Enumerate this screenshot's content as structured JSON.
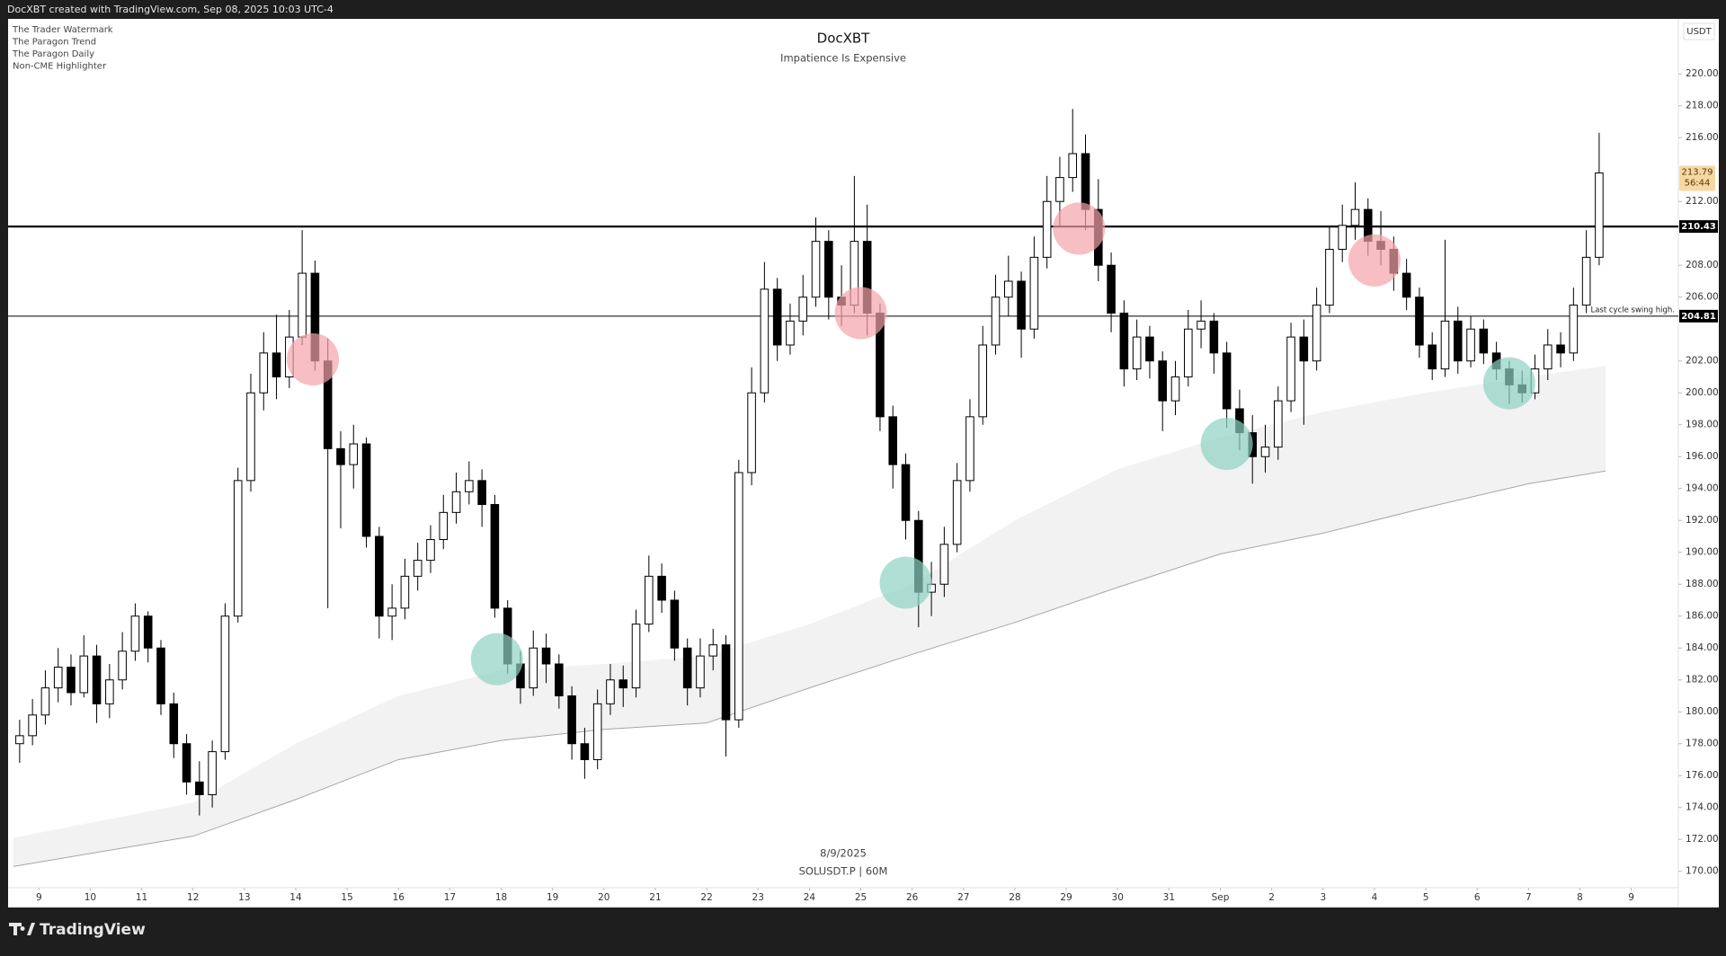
{
  "page": {
    "header": "DocXBT created with TradingView.com, Sep 08, 2025 10:03 UTC-4",
    "indicators": [
      "The Trader Watermark",
      "The Paragon Trend",
      "The Paragon Daily",
      "Non-CME Highlighter"
    ],
    "brand": "TradingView"
  },
  "chart_data": {
    "type": "candlestick",
    "title": "DocXBT",
    "subtitle": "Impatience Is Expensive",
    "date_label": "8/9/2025",
    "symbol": "SOLUSDT.P | 60M",
    "y_unit": "USDT",
    "up_color": "#ffffff",
    "down_color": "#000000",
    "wick_color": "#000000",
    "xlim": [
      "2025-08-08T09:36",
      "2025-09-09T22:00"
    ],
    "ylim": [
      168.97,
      223.45
    ],
    "grid": false,
    "xticks": [
      {
        "value": "2025-08-09T00:00",
        "label": "9"
      },
      {
        "value": "2025-08-10T00:00",
        "label": "10"
      },
      {
        "value": "2025-08-11T00:00",
        "label": "11"
      },
      {
        "value": "2025-08-12T00:00",
        "label": "12"
      },
      {
        "value": "2025-08-13T00:00",
        "label": "13"
      },
      {
        "value": "2025-08-14T00:00",
        "label": "14"
      },
      {
        "value": "2025-08-15T00:00",
        "label": "15"
      },
      {
        "value": "2025-08-16T00:00",
        "label": "16"
      },
      {
        "value": "2025-08-17T00:00",
        "label": "17"
      },
      {
        "value": "2025-08-18T00:00",
        "label": "18"
      },
      {
        "value": "2025-08-19T00:00",
        "label": "19"
      },
      {
        "value": "2025-08-20T00:00",
        "label": "20"
      },
      {
        "value": "2025-08-21T00:00",
        "label": "21"
      },
      {
        "value": "2025-08-22T00:00",
        "label": "22"
      },
      {
        "value": "2025-08-23T00:00",
        "label": "23"
      },
      {
        "value": "2025-08-24T00:00",
        "label": "24"
      },
      {
        "value": "2025-08-25T00:00",
        "label": "25"
      },
      {
        "value": "2025-08-26T00:00",
        "label": "26"
      },
      {
        "value": "2025-08-27T00:00",
        "label": "27"
      },
      {
        "value": "2025-08-28T00:00",
        "label": "28"
      },
      {
        "value": "2025-08-29T00:00",
        "label": "29"
      },
      {
        "value": "2025-08-30T00:00",
        "label": "30"
      },
      {
        "value": "2025-08-31T00:00",
        "label": "31"
      },
      {
        "value": "2025-09-01T00:00",
        "label": "Sep"
      },
      {
        "value": "2025-09-02T00:00",
        "label": "2"
      },
      {
        "value": "2025-09-03T00:00",
        "label": "3"
      },
      {
        "value": "2025-09-04T00:00",
        "label": "4"
      },
      {
        "value": "2025-09-05T00:00",
        "label": "5"
      },
      {
        "value": "2025-09-06T00:00",
        "label": "6"
      },
      {
        "value": "2025-09-07T00:00",
        "label": "7"
      },
      {
        "value": "2025-09-08T00:00",
        "label": "8"
      },
      {
        "value": "2025-09-09T00:00",
        "label": "9"
      }
    ],
    "yticks": [
      {
        "value": 170,
        "label": "170.00"
      },
      {
        "value": 172,
        "label": "172.00"
      },
      {
        "value": 174,
        "label": "174.00"
      },
      {
        "value": 176,
        "label": "176.00"
      },
      {
        "value": 178,
        "label": "178.00"
      },
      {
        "value": 180,
        "label": "180.00"
      },
      {
        "value": 182,
        "label": "182.00"
      },
      {
        "value": 184,
        "label": "184.00"
      },
      {
        "value": 186,
        "label": "186.00"
      },
      {
        "value": 188,
        "label": "188.00"
      },
      {
        "value": 190,
        "label": "190.00"
      },
      {
        "value": 192,
        "label": "192.00"
      },
      {
        "value": 194,
        "label": "194.00"
      },
      {
        "value": 196,
        "label": "196.00"
      },
      {
        "value": 198,
        "label": "198.00"
      },
      {
        "value": 200,
        "label": "200.00"
      },
      {
        "value": 202,
        "label": "202.00"
      },
      {
        "value": 206,
        "label": "206.00"
      },
      {
        "value": 208,
        "label": "208.00"
      },
      {
        "value": 212,
        "label": "212.00"
      },
      {
        "value": 216,
        "label": "216.00"
      },
      {
        "value": 218,
        "label": "218.00"
      },
      {
        "value": 220,
        "label": "220.00"
      }
    ],
    "x": [
      "2025-08-08T12:00",
      "2025-08-08T18:00",
      "2025-08-09T00:00",
      "2025-08-09T06:00",
      "2025-08-09T12:00",
      "2025-08-09T18:00",
      "2025-08-10T00:00",
      "2025-08-10T06:00",
      "2025-08-10T12:00",
      "2025-08-10T18:00",
      "2025-08-11T00:00",
      "2025-08-11T06:00",
      "2025-08-11T12:00",
      "2025-08-11T18:00",
      "2025-08-12T00:00",
      "2025-08-12T06:00",
      "2025-08-12T12:00",
      "2025-08-12T18:00",
      "2025-08-13T00:00",
      "2025-08-13T06:00",
      "2025-08-13T12:00",
      "2025-08-13T18:00",
      "2025-08-14T00:00",
      "2025-08-14T06:00",
      "2025-08-14T12:00",
      "2025-08-14T18:00",
      "2025-08-15T00:00",
      "2025-08-15T06:00",
      "2025-08-15T12:00",
      "2025-08-15T18:00",
      "2025-08-16T00:00",
      "2025-08-16T06:00",
      "2025-08-16T12:00",
      "2025-08-16T18:00",
      "2025-08-17T00:00",
      "2025-08-17T06:00",
      "2025-08-17T12:00",
      "2025-08-17T18:00",
      "2025-08-18T00:00",
      "2025-08-18T06:00",
      "2025-08-18T12:00",
      "2025-08-18T18:00",
      "2025-08-19T00:00",
      "2025-08-19T06:00",
      "2025-08-19T12:00",
      "2025-08-19T18:00",
      "2025-08-20T00:00",
      "2025-08-20T06:00",
      "2025-08-20T12:00",
      "2025-08-20T18:00",
      "2025-08-21T00:00",
      "2025-08-21T06:00",
      "2025-08-21T12:00",
      "2025-08-21T18:00",
      "2025-08-22T00:00",
      "2025-08-22T06:00",
      "2025-08-22T12:00",
      "2025-08-22T18:00",
      "2025-08-23T00:00",
      "2025-08-23T06:00",
      "2025-08-23T12:00",
      "2025-08-23T18:00",
      "2025-08-24T00:00",
      "2025-08-24T06:00",
      "2025-08-24T12:00",
      "2025-08-24T18:00",
      "2025-08-25T00:00",
      "2025-08-25T06:00",
      "2025-08-25T12:00",
      "2025-08-25T18:00",
      "2025-08-26T00:00",
      "2025-08-26T06:00",
      "2025-08-26T12:00",
      "2025-08-26T18:00",
      "2025-08-27T00:00",
      "2025-08-27T06:00",
      "2025-08-27T12:00",
      "2025-08-27T18:00",
      "2025-08-28T00:00",
      "2025-08-28T06:00",
      "2025-08-28T12:00",
      "2025-08-28T18:00",
      "2025-08-29T00:00",
      "2025-08-29T06:00",
      "2025-08-29T12:00",
      "2025-08-29T18:00",
      "2025-08-30T00:00",
      "2025-08-30T06:00",
      "2025-08-30T12:00",
      "2025-08-30T18:00",
      "2025-08-31T00:00",
      "2025-08-31T06:00",
      "2025-08-31T12:00",
      "2025-08-31T18:00",
      "2025-09-01T00:00",
      "2025-09-01T06:00",
      "2025-09-01T12:00",
      "2025-09-01T18:00",
      "2025-09-02T00:00",
      "2025-09-02T06:00",
      "2025-09-02T12:00",
      "2025-09-02T18:00",
      "2025-09-03T00:00",
      "2025-09-03T06:00",
      "2025-09-03T12:00",
      "2025-09-03T18:00",
      "2025-09-04T00:00",
      "2025-09-04T06:00",
      "2025-09-04T12:00",
      "2025-09-04T18:00",
      "2025-09-05T00:00",
      "2025-09-05T06:00",
      "2025-09-05T12:00",
      "2025-09-05T18:00",
      "2025-09-06T00:00",
      "2025-09-06T06:00",
      "2025-09-06T12:00",
      "2025-09-06T18:00",
      "2025-09-07T00:00",
      "2025-09-07T06:00",
      "2025-09-07T12:00",
      "2025-09-07T18:00",
      "2025-09-08T00:00",
      "2025-09-08T06:00"
    ],
    "open": [
      178.0,
      178.5,
      179.8,
      181.5,
      182.8,
      181.2,
      183.5,
      180.5,
      182.0,
      183.8,
      186.0,
      184.0,
      180.5,
      178.0,
      175.6,
      174.8,
      177.5,
      186.0,
      194.5,
      200.0,
      202.5,
      201.0,
      203.5,
      207.5,
      202.0,
      196.5,
      195.5,
      196.8,
      191.0,
      186.0,
      186.5,
      188.5,
      189.5,
      190.8,
      192.5,
      193.8,
      194.5,
      193.0,
      186.5,
      183.0,
      181.5,
      184.0,
      183.0,
      181.0,
      178.0,
      177.0,
      180.5,
      182.0,
      181.5,
      185.5,
      188.5,
      187.0,
      184.0,
      181.5,
      183.5,
      184.2,
      179.5,
      195.0,
      200.0,
      206.5,
      203.0,
      204.5,
      206.0,
      209.5,
      206.0,
      205.5,
      209.5,
      205.0,
      198.5,
      195.5,
      192.0,
      187.5,
      188.0,
      190.5,
      194.5,
      198.5,
      203.0,
      206.0,
      207.0,
      204.0,
      208.5,
      212.0,
      213.5,
      215.0,
      211.5,
      208.0,
      205.0,
      201.5,
      203.5,
      202.0,
      199.5,
      201.0,
      204.0,
      204.5,
      202.5,
      199.0,
      197.5,
      196.0,
      196.6,
      199.5,
      203.5,
      202.0,
      205.5,
      209.0,
      210.5,
      211.5,
      209.5,
      209.0,
      207.5,
      206.0,
      203.0,
      201.5,
      204.5,
      202.0,
      204.0,
      202.5,
      201.5,
      200.5,
      200.0,
      201.5,
      203.0,
      202.5,
      205.5,
      208.5
    ],
    "high": [
      179.5,
      180.8,
      182.6,
      184.0,
      183.6,
      184.8,
      184.2,
      183.0,
      185.0,
      186.8,
      186.3,
      184.5,
      181.2,
      178.6,
      176.9,
      178.2,
      186.8,
      195.3,
      201.2,
      203.8,
      204.9,
      205.2,
      210.2,
      208.3,
      203.4,
      197.6,
      198.0,
      197.2,
      191.6,
      188.0,
      189.6,
      190.6,
      191.7,
      193.6,
      195.0,
      195.7,
      195.2,
      193.6,
      187.0,
      183.8,
      185.1,
      184.9,
      183.6,
      181.6,
      179.0,
      181.4,
      183.0,
      182.9,
      186.4,
      189.8,
      189.3,
      187.6,
      184.6,
      184.6,
      185.2,
      184.8,
      195.8,
      201.6,
      208.2,
      207.2,
      205.6,
      207.4,
      211.0,
      210.2,
      208.0,
      213.6,
      211.8,
      205.6,
      199.2,
      196.2,
      192.6,
      189.4,
      191.6,
      195.6,
      199.6,
      204.2,
      207.4,
      208.6,
      207.6,
      209.8,
      213.6,
      214.8,
      217.8,
      216.2,
      213.4,
      208.8,
      205.8,
      204.6,
      204.2,
      202.6,
      202.0,
      205.2,
      205.8,
      205.0,
      203.2,
      200.2,
      198.6,
      198.0,
      200.4,
      204.4,
      204.6,
      206.6,
      210.4,
      211.8,
      213.2,
      212.2,
      211.4,
      209.8,
      208.4,
      206.6,
      203.8,
      209.6,
      205.4,
      204.8,
      204.6,
      203.2,
      202.0,
      201.4,
      202.4,
      204.0,
      203.8,
      206.6,
      210.2,
      216.3
    ],
    "low": [
      176.8,
      177.9,
      179.2,
      180.6,
      180.4,
      180.9,
      179.3,
      179.6,
      181.4,
      183.2,
      183.1,
      179.8,
      177.1,
      174.8,
      173.5,
      174.0,
      177.0,
      185.6,
      193.8,
      198.9,
      199.6,
      200.3,
      203.0,
      201.4,
      186.5,
      191.5,
      194.0,
      190.3,
      184.6,
      184.5,
      185.8,
      187.6,
      188.7,
      190.2,
      191.8,
      193.0,
      191.6,
      185.9,
      182.4,
      180.5,
      181.0,
      181.8,
      180.2,
      177.0,
      175.8,
      176.4,
      179.8,
      180.3,
      180.9,
      185.0,
      186.2,
      183.2,
      180.4,
      180.9,
      182.6,
      177.2,
      179.0,
      194.2,
      199.4,
      202.0,
      202.4,
      203.6,
      205.4,
      204.6,
      204.2,
      205.0,
      203.6,
      197.6,
      194.0,
      190.8,
      185.3,
      186.0,
      187.2,
      190.0,
      193.8,
      198.0,
      202.4,
      204.8,
      202.2,
      203.4,
      207.8,
      210.4,
      212.6,
      210.2,
      207.0,
      203.8,
      200.4,
      200.8,
      200.9,
      197.6,
      198.6,
      200.4,
      202.8,
      201.2,
      197.8,
      196.4,
      194.3,
      195.0,
      195.8,
      198.8,
      198.0,
      201.4,
      205.0,
      208.2,
      209.6,
      208.6,
      208.0,
      206.4,
      205.2,
      202.2,
      200.8,
      201.0,
      201.2,
      201.6,
      201.8,
      200.8,
      199.3,
      199.4,
      199.6,
      200.8,
      201.6,
      202.0,
      205.0,
      208.0
    ],
    "close": [
      178.5,
      179.8,
      181.5,
      182.8,
      181.2,
      183.5,
      180.5,
      182.0,
      183.8,
      186.0,
      184.0,
      180.5,
      178.0,
      175.6,
      174.8,
      177.5,
      186.0,
      194.5,
      200.0,
      202.5,
      201.0,
      203.5,
      207.5,
      202.0,
      196.5,
      195.5,
      196.8,
      191.0,
      186.0,
      186.5,
      188.5,
      189.5,
      190.8,
      192.5,
      193.8,
      194.5,
      193.0,
      186.5,
      183.0,
      181.5,
      184.0,
      183.0,
      181.0,
      178.0,
      177.0,
      180.5,
      182.0,
      181.5,
      185.5,
      188.5,
      187.0,
      184.0,
      181.5,
      183.5,
      184.2,
      179.5,
      195.0,
      200.0,
      206.5,
      203.0,
      204.5,
      206.0,
      209.5,
      206.0,
      205.5,
      209.5,
      205.0,
      198.5,
      195.5,
      192.0,
      187.5,
      188.0,
      190.5,
      194.5,
      198.5,
      203.0,
      206.0,
      207.0,
      204.0,
      208.5,
      212.0,
      213.5,
      215.0,
      211.5,
      208.0,
      205.0,
      201.5,
      203.5,
      202.0,
      199.5,
      201.0,
      204.0,
      204.5,
      202.5,
      199.0,
      197.5,
      196.0,
      196.6,
      199.5,
      203.5,
      202.0,
      205.5,
      209.0,
      210.5,
      211.5,
      209.5,
      209.0,
      207.5,
      206.0,
      203.0,
      201.5,
      204.5,
      202.0,
      204.0,
      202.5,
      201.5,
      200.5,
      200.0,
      201.5,
      203.0,
      202.5,
      205.5,
      208.5,
      213.79
    ],
    "band": {
      "color": "#f2f2f2",
      "line_color": "#a6a6a6",
      "x": [
        "2025-08-08T12:00",
        "2025-08-12T00:00",
        "2025-08-14T00:00",
        "2025-08-16T00:00",
        "2025-08-18T00:00",
        "2025-08-20T00:00",
        "2025-08-22T00:00",
        "2025-08-24T00:00",
        "2025-08-26T00:00",
        "2025-08-28T00:00",
        "2025-08-30T00:00",
        "2025-09-01T00:00",
        "2025-09-03T00:00",
        "2025-09-05T00:00",
        "2025-09-07T00:00",
        "2025-09-08T12:00"
      ],
      "upper": [
        172.1,
        174.3,
        178.0,
        181.0,
        182.6,
        183.0,
        183.5,
        185.5,
        188.0,
        192.0,
        195.2,
        197.2,
        198.8,
        200.0,
        201.0,
        201.7
      ],
      "lower": [
        170.3,
        172.2,
        174.5,
        177.0,
        178.2,
        178.9,
        179.3,
        181.5,
        183.6,
        185.6,
        187.8,
        189.9,
        191.2,
        192.8,
        194.3,
        195.1
      ]
    },
    "hlines": [
      {
        "value": 210.43,
        "bold": true
      },
      {
        "value": 204.81,
        "note": "Last cycle swing high."
      }
    ],
    "last_price": 213.79,
    "countdown": "56:44",
    "last_price_color": "#f7d7a4",
    "highlights": [
      {
        "x": "2025-08-14T08:00",
        "y": 202.1,
        "color": "#f4a3aa"
      },
      {
        "x": "2025-08-25T00:00",
        "y": 205.0,
        "color": "#f4a3aa"
      },
      {
        "x": "2025-08-29T06:00",
        "y": 210.3,
        "color": "#f4a3aa"
      },
      {
        "x": "2025-09-04T00:00",
        "y": 208.3,
        "color": "#f4a3aa"
      },
      {
        "x": "2025-08-17T22:00",
        "y": 183.3,
        "color": "#8fd3c3"
      },
      {
        "x": "2025-08-25T21:00",
        "y": 188.1,
        "color": "#8fd3c3"
      },
      {
        "x": "2025-09-01T03:00",
        "y": 196.8,
        "color": "#8fd3c3"
      },
      {
        "x": "2025-09-06T15:00",
        "y": 200.6,
        "color": "#8fd3c3"
      }
    ]
  }
}
